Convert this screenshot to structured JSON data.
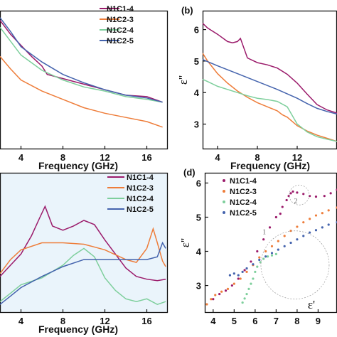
{
  "colors": {
    "N1C1-4": "#9b1b6b",
    "N1C2-3": "#ee7d3a",
    "N1C2-4": "#7ecf9c",
    "N1C2-5": "#4463ad",
    "panel_c_bg": "#eaf4fb"
  },
  "chart_data": [
    {
      "type": "line",
      "panel_label": "",
      "xlabel": "Frequency (GHz)",
      "ylabel": "",
      "xlim": [
        2,
        18
      ],
      "ylim": [
        0,
        1
      ],
      "xticks": [
        "4",
        "8",
        "12",
        "16"
      ],
      "legend": "top-right",
      "series": [
        {
          "name": "N1C1-4",
          "x": [
            2,
            3,
            4,
            5,
            6,
            6.5,
            7,
            8,
            9,
            10,
            12,
            14,
            16,
            17.5
          ],
          "values": [
            0.93,
            0.83,
            0.75,
            0.67,
            0.6,
            0.54,
            0.53,
            0.51,
            0.49,
            0.47,
            0.43,
            0.39,
            0.38,
            0.34
          ]
        },
        {
          "name": "N1C2-3",
          "x": [
            2,
            3,
            4,
            6,
            8,
            10,
            12,
            14,
            16,
            17.5
          ],
          "values": [
            0.67,
            0.58,
            0.5,
            0.42,
            0.36,
            0.3,
            0.26,
            0.23,
            0.2,
            0.16
          ]
        },
        {
          "name": "N1C2-4",
          "x": [
            2,
            3,
            4,
            6,
            8,
            10,
            12,
            14,
            16,
            17.5
          ],
          "values": [
            0.88,
            0.78,
            0.68,
            0.57,
            0.5,
            0.45,
            0.42,
            0.38,
            0.36,
            0.34
          ]
        },
        {
          "name": "N1C2-5",
          "x": [
            2,
            3,
            4,
            6,
            8,
            10,
            12,
            14,
            16,
            17.5
          ],
          "values": [
            0.95,
            0.85,
            0.74,
            0.63,
            0.54,
            0.48,
            0.43,
            0.39,
            0.37,
            0.34
          ]
        }
      ]
    },
    {
      "type": "line",
      "panel_label": "(b)",
      "xlabel": "Frequency (GHz)",
      "ylabel": "ε''",
      "xlim": [
        2.5,
        16
      ],
      "ylim": [
        2.2,
        6.6
      ],
      "yticks": [
        "3",
        "4",
        "5",
        "6"
      ],
      "xticks": [
        "4",
        "8",
        "12"
      ],
      "series": [
        {
          "name": "N1C1-4",
          "x": [
            2.5,
            3,
            4,
            5,
            5.5,
            6,
            6.3,
            7,
            8,
            9,
            10,
            11,
            12,
            13,
            14,
            15,
            16
          ],
          "values": [
            6.2,
            6.05,
            5.85,
            5.62,
            5.58,
            5.62,
            5.72,
            5.1,
            4.95,
            4.88,
            4.78,
            4.58,
            4.3,
            3.95,
            3.62,
            3.45,
            3.35
          ]
        },
        {
          "name": "N1C2-3",
          "x": [
            2.5,
            3,
            4,
            5,
            6,
            7,
            8,
            9,
            10,
            10.5,
            11,
            12,
            13,
            14,
            15,
            16
          ],
          "values": [
            5.25,
            5.0,
            4.6,
            4.3,
            4.05,
            3.85,
            3.68,
            3.55,
            3.42,
            3.3,
            3.22,
            2.95,
            2.78,
            2.65,
            2.55,
            2.45
          ]
        },
        {
          "name": "N1C2-4",
          "x": [
            2.5,
            3,
            4,
            5,
            6,
            7,
            8,
            9,
            10,
            11,
            12,
            13,
            14,
            15,
            16
          ],
          "values": [
            4.42,
            4.35,
            4.2,
            4.1,
            4.0,
            3.9,
            3.82,
            3.78,
            3.72,
            3.55,
            3.0,
            2.75,
            2.6,
            2.52,
            2.45
          ]
        },
        {
          "name": "N1C2-5",
          "x": [
            2.5,
            4,
            6,
            8,
            10,
            12,
            13,
            14,
            15,
            16
          ],
          "values": [
            5.05,
            4.85,
            4.6,
            4.35,
            4.1,
            3.82,
            3.65,
            3.5,
            3.4,
            3.32
          ]
        }
      ]
    },
    {
      "type": "line",
      "panel_label": "",
      "xlabel": "Frequency (GHz)",
      "ylabel": "",
      "xlim": [
        2,
        18
      ],
      "ylim": [
        0,
        1
      ],
      "xticks": [
        "4",
        "8",
        "12",
        "16"
      ],
      "legend": "top-right",
      "series": [
        {
          "name": "N1C1-4",
          "x": [
            2,
            3,
            4,
            5,
            5.8,
            6.3,
            7,
            8,
            9,
            10,
            11,
            12,
            13,
            14,
            15,
            16,
            17,
            17.8
          ],
          "values": [
            0.26,
            0.34,
            0.42,
            0.55,
            0.68,
            0.76,
            0.62,
            0.59,
            0.62,
            0.66,
            0.63,
            0.52,
            0.42,
            0.32,
            0.26,
            0.24,
            0.23,
            0.24
          ]
        },
        {
          "name": "N1C2-3",
          "x": [
            2,
            3,
            4,
            6,
            8,
            10,
            12,
            14,
            15,
            16,
            16.6,
            17,
            17.5,
            17.8
          ],
          "values": [
            0.28,
            0.38,
            0.45,
            0.5,
            0.5,
            0.49,
            0.45,
            0.38,
            0.36,
            0.46,
            0.6,
            0.5,
            0.37,
            0.33
          ]
        },
        {
          "name": "N1C2-4",
          "x": [
            2,
            3,
            4,
            6,
            8,
            9,
            10,
            11,
            12,
            13,
            14,
            15,
            16,
            17,
            17.8
          ],
          "values": [
            0.08,
            0.14,
            0.2,
            0.25,
            0.34,
            0.41,
            0.46,
            0.4,
            0.25,
            0.16,
            0.1,
            0.08,
            0.1,
            0.06,
            0.08
          ]
        },
        {
          "name": "N1C2-5",
          "x": [
            2,
            3,
            4,
            6,
            8,
            10,
            12,
            14,
            16,
            17,
            17.5,
            17.8
          ],
          "values": [
            0.06,
            0.12,
            0.18,
            0.26,
            0.33,
            0.38,
            0.38,
            0.38,
            0.38,
            0.4,
            0.5,
            0.46
          ]
        }
      ]
    },
    {
      "type": "scatter",
      "panel_label": "(d)",
      "xlabel": "ε'",
      "ylabel": "ε''",
      "xlim": [
        3.6,
        9.9
      ],
      "ylim": [
        2.2,
        6.3
      ],
      "xticks": [
        "4",
        "5",
        "6",
        "7",
        "8",
        "9"
      ],
      "yticks": [
        "3",
        "4",
        "5",
        "6"
      ],
      "legend": "top-left",
      "annotations": [
        "1",
        "2"
      ],
      "series": [
        {
          "name": "N1C1-4",
          "x": [
            4.0,
            4.3,
            4.6,
            4.9,
            5.2,
            5.5,
            5.8,
            6.1,
            6.4,
            6.7,
            7.0,
            7.2,
            7.3,
            7.5,
            7.6,
            7.7,
            7.8,
            8.0,
            8.3,
            8.6,
            8.9,
            9.3,
            9.6,
            9.9
          ],
          "values": [
            2.6,
            2.75,
            2.85,
            3.0,
            3.2,
            3.45,
            3.7,
            4.0,
            4.35,
            4.7,
            5.0,
            5.1,
            5.3,
            5.5,
            5.62,
            5.7,
            5.75,
            5.72,
            5.68,
            5.62,
            5.6,
            5.62,
            5.7,
            5.8
          ]
        },
        {
          "name": "N1C2-3",
          "x": [
            3.7,
            3.9,
            4.1,
            4.4,
            4.7,
            5.0,
            5.3,
            5.6,
            5.9,
            6.2,
            6.5,
            6.8,
            7.1,
            7.4,
            7.7,
            8.0,
            8.3,
            8.6,
            8.9,
            9.2,
            9.5,
            9.9
          ],
          "values": [
            2.45,
            2.6,
            2.72,
            2.82,
            2.9,
            3.05,
            3.2,
            3.4,
            3.6,
            3.82,
            4.0,
            4.15,
            4.3,
            4.45,
            4.6,
            4.72,
            4.85,
            4.95,
            5.05,
            5.12,
            5.2,
            5.28
          ]
        },
        {
          "name": "N1C2-4",
          "x": [
            5.4,
            5.5,
            5.6,
            5.7,
            5.8,
            5.9,
            6.0,
            6.1,
            6.25,
            6.4,
            6.6,
            6.8,
            7.0
          ],
          "values": [
            2.5,
            2.62,
            2.75,
            2.9,
            3.05,
            3.2,
            3.4,
            3.55,
            3.68,
            3.78,
            3.85,
            3.88,
            3.92
          ]
        },
        {
          "name": "N1C2-5",
          "x": [
            4.8,
            5.0,
            5.2,
            5.4,
            5.6,
            5.9,
            6.2,
            6.5,
            6.8,
            7.1,
            7.4,
            7.7,
            8.0,
            8.3,
            8.6,
            8.9,
            9.2,
            9.5,
            9.9
          ],
          "values": [
            3.3,
            3.35,
            3.3,
            3.4,
            3.5,
            3.62,
            3.75,
            3.85,
            3.95,
            4.05,
            4.15,
            4.25,
            4.35,
            4.45,
            4.55,
            4.62,
            4.7,
            4.78,
            4.85
          ]
        }
      ]
    }
  ]
}
